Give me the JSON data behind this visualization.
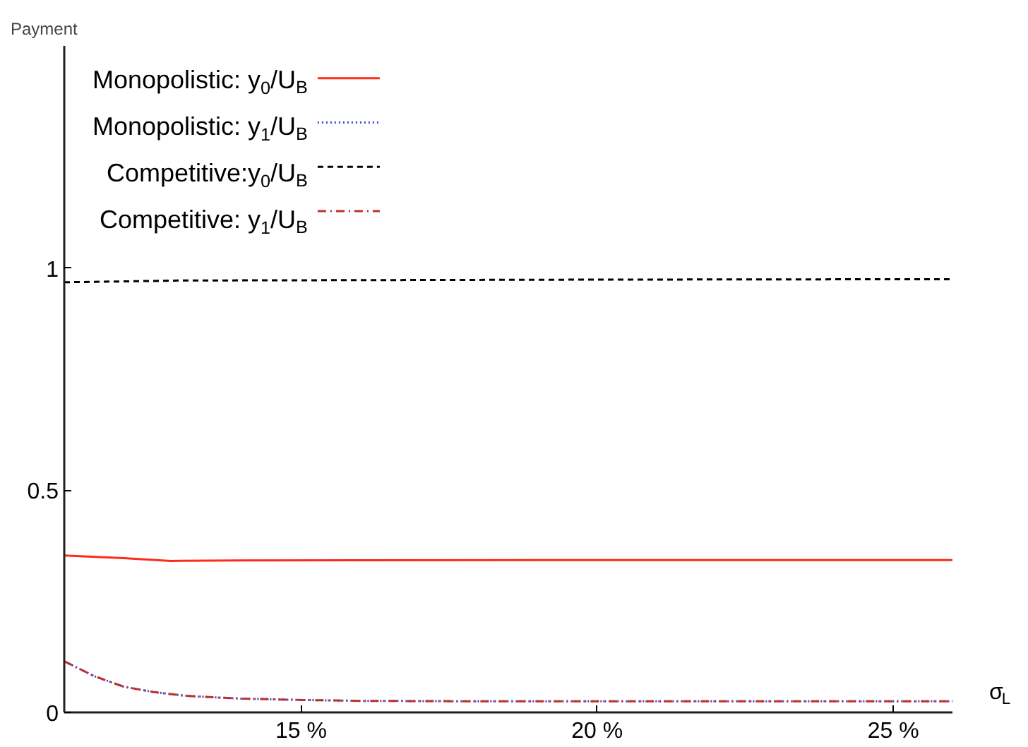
{
  "chart_data": {
    "type": "line",
    "ylabel": "Payment",
    "xlabel": "σ$_{L}$",
    "xlim": [
      11,
      26
    ],
    "ylim": [
      0,
      1.5
    ],
    "xticks": [
      {
        "value": 15,
        "label": "15 %"
      },
      {
        "value": 20,
        "label": "20 %"
      },
      {
        "value": 25,
        "label": "25 %"
      }
    ],
    "yticks": [
      0,
      0.5,
      1
    ],
    "grid": false,
    "legend": "top left",
    "marker": "none",
    "series": [
      {
        "name": "Monopolistic: y$_{0}$/U$_{B}$",
        "color": "#ff2a1a",
        "line_style": "solid",
        "x": [
          11,
          12,
          12.8,
          14,
          20,
          26
        ],
        "values": [
          0.353,
          0.347,
          0.341,
          0.342,
          0.343,
          0.343
        ]
      },
      {
        "name": "Monopolistic: y$_{1}$/U$_{B}$",
        "color": "#3344dd",
        "line_style": "dotted",
        "x": [
          11,
          11.5,
          12,
          12.5,
          13,
          13.5,
          14,
          15,
          16,
          18,
          20,
          22,
          24,
          26
        ],
        "values": [
          0.115,
          0.082,
          0.058,
          0.046,
          0.038,
          0.034,
          0.031,
          0.028,
          0.026,
          0.025,
          0.025,
          0.025,
          0.025,
          0.025
        ]
      },
      {
        "name": "Competitive:y$_{0}$/U$_{B}$",
        "color": "#000000",
        "line_style": "dashed",
        "x": [
          11,
          13,
          20,
          26
        ],
        "values": [
          0.968,
          0.972,
          0.974,
          0.975
        ]
      },
      {
        "name": "Competitive: y$_{1}$/U$_{B}$",
        "color": "#c0302a",
        "line_style": "dashdot",
        "x": [
          11,
          11.5,
          12,
          12.5,
          13,
          13.5,
          14,
          15,
          16,
          18,
          20,
          22,
          24,
          26
        ],
        "values": [
          0.115,
          0.082,
          0.058,
          0.046,
          0.038,
          0.034,
          0.031,
          0.028,
          0.026,
          0.025,
          0.025,
          0.025,
          0.025,
          0.025
        ]
      }
    ]
  }
}
